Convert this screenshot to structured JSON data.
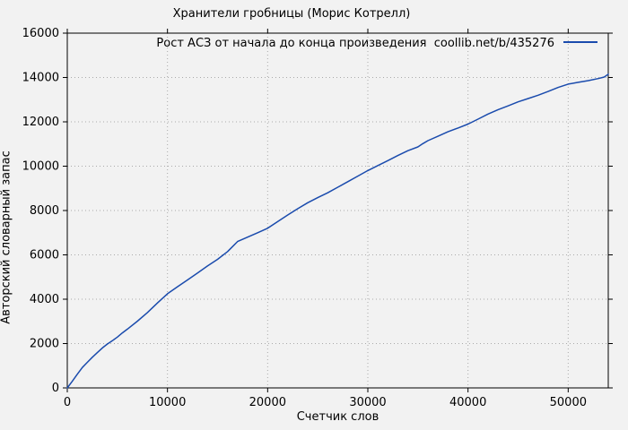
{
  "title": "Хранители гробницы (Морис Котрелл)",
  "legend": {
    "label": "Рост АСЗ от начала до конца произведения  coollib.net/b/435276"
  },
  "colors": {
    "background": "#f2f2f2",
    "line": "#1a4bad",
    "grid": "#aaaaaa",
    "frame": "#000000",
    "text": "#000000"
  },
  "chart_data": {
    "type": "line",
    "title": "Хранители гробницы (Морис Котрелл)",
    "xlabel": "Счетчик слов",
    "ylabel": "Авторский словарный запас",
    "xlim": [
      0,
      54000
    ],
    "ylim": [
      0,
      16000
    ],
    "x_ticks": [
      0,
      10000,
      20000,
      30000,
      40000,
      50000
    ],
    "y_ticks": [
      0,
      2000,
      4000,
      6000,
      8000,
      10000,
      12000,
      14000,
      16000
    ],
    "grid": true,
    "grid_style": "dotted",
    "legend_position": "top-right-inside",
    "series": [
      {
        "name": "Рост АСЗ от начала до конца произведения  coollib.net/b/435276",
        "color": "#1a4bad",
        "points": [
          [
            0,
            0
          ],
          [
            500,
            300
          ],
          [
            1000,
            620
          ],
          [
            1500,
            920
          ],
          [
            2000,
            1150
          ],
          [
            2500,
            1380
          ],
          [
            3000,
            1590
          ],
          [
            3500,
            1800
          ],
          [
            4000,
            1980
          ],
          [
            4500,
            2130
          ],
          [
            5000,
            2290
          ],
          [
            5500,
            2480
          ],
          [
            6000,
            2650
          ],
          [
            7000,
            3010
          ],
          [
            8000,
            3400
          ],
          [
            9000,
            3830
          ],
          [
            10000,
            4245
          ],
          [
            11000,
            4560
          ],
          [
            12000,
            4870
          ],
          [
            13000,
            5180
          ],
          [
            14000,
            5500
          ],
          [
            15000,
            5800
          ],
          [
            16000,
            6150
          ],
          [
            17000,
            6600
          ],
          [
            18000,
            6800
          ],
          [
            19000,
            7000
          ],
          [
            20000,
            7200
          ],
          [
            21000,
            7500
          ],
          [
            22000,
            7800
          ],
          [
            23000,
            8080
          ],
          [
            24000,
            8350
          ],
          [
            25000,
            8580
          ],
          [
            26000,
            8800
          ],
          [
            27000,
            9050
          ],
          [
            28000,
            9300
          ],
          [
            29000,
            9550
          ],
          [
            30000,
            9800
          ],
          [
            31000,
            10030
          ],
          [
            32000,
            10250
          ],
          [
            33000,
            10480
          ],
          [
            34000,
            10700
          ],
          [
            35000,
            10870
          ],
          [
            35500,
            11020
          ],
          [
            36000,
            11150
          ],
          [
            37000,
            11350
          ],
          [
            38000,
            11550
          ],
          [
            39000,
            11720
          ],
          [
            40000,
            11900
          ],
          [
            41000,
            12120
          ],
          [
            42000,
            12350
          ],
          [
            43000,
            12550
          ],
          [
            44000,
            12720
          ],
          [
            45000,
            12900
          ],
          [
            46000,
            13050
          ],
          [
            47000,
            13200
          ],
          [
            48000,
            13370
          ],
          [
            49000,
            13550
          ],
          [
            50000,
            13700
          ],
          [
            51000,
            13780
          ],
          [
            52000,
            13860
          ],
          [
            53000,
            13950
          ],
          [
            53600,
            14020
          ],
          [
            54000,
            14150
          ]
        ]
      }
    ]
  }
}
